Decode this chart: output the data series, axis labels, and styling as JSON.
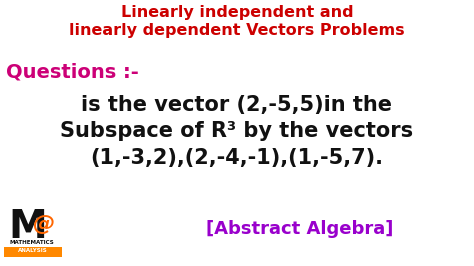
{
  "bg_color": "#ffffff",
  "title_line1": "Linearly independent and",
  "title_line2": "linearly dependent Vectors Problems",
  "title_color": "#cc0000",
  "title_fontsize": 11.5,
  "questions_text": "Questions :-",
  "questions_color": "#cc0077",
  "questions_fontsize": 14,
  "body_line1": "is the vector (2,-5,5)in the",
  "body_line2": "Subspace of R³ by the vectors",
  "body_line3": "(1,-3,2),(2,-4,-1),(1,-5,7).",
  "body_color": "#111111",
  "body_fontsize": 15,
  "abstract_text": "[Abstract Algebra]",
  "abstract_color": "#9900cc",
  "abstract_fontsize": 13,
  "logo_M": "M",
  "logo_at": "@",
  "logo_sub1": "MATHEMATICS",
  "logo_sub2": "ANALYSIS",
  "logo_orange": "#ff8800",
  "logo_at_color": "#ff6600"
}
